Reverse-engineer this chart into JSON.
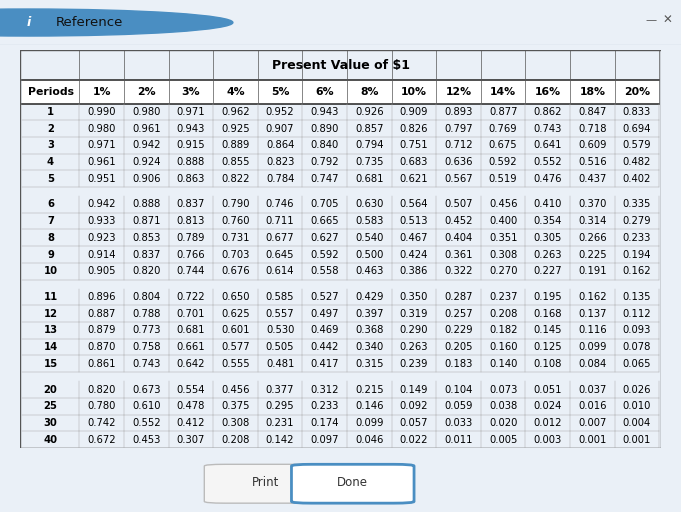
{
  "title": "Present Value of $1",
  "headers": [
    "Periods",
    "1%",
    "2%",
    "3%",
    "4%",
    "5%",
    "6%",
    "8%",
    "10%",
    "12%",
    "14%",
    "16%",
    "18%",
    "20%"
  ],
  "rows": [
    [
      "1",
      "0.990",
      "0.980",
      "0.971",
      "0.962",
      "0.952",
      "0.943",
      "0.926",
      "0.909",
      "0.893",
      "0.877",
      "0.862",
      "0.847",
      "0.833"
    ],
    [
      "2",
      "0.980",
      "0.961",
      "0.943",
      "0.925",
      "0.907",
      "0.890",
      "0.857",
      "0.826",
      "0.797",
      "0.769",
      "0.743",
      "0.718",
      "0.694"
    ],
    [
      "3",
      "0.971",
      "0.942",
      "0.915",
      "0.889",
      "0.864",
      "0.840",
      "0.794",
      "0.751",
      "0.712",
      "0.675",
      "0.641",
      "0.609",
      "0.579"
    ],
    [
      "4",
      "0.961",
      "0.924",
      "0.888",
      "0.855",
      "0.823",
      "0.792",
      "0.735",
      "0.683",
      "0.636",
      "0.592",
      "0.552",
      "0.516",
      "0.482"
    ],
    [
      "5",
      "0.951",
      "0.906",
      "0.863",
      "0.822",
      "0.784",
      "0.747",
      "0.681",
      "0.621",
      "0.567",
      "0.519",
      "0.476",
      "0.437",
      "0.402"
    ],
    [
      "6",
      "0.942",
      "0.888",
      "0.837",
      "0.790",
      "0.746",
      "0.705",
      "0.630",
      "0.564",
      "0.507",
      "0.456",
      "0.410",
      "0.370",
      "0.335"
    ],
    [
      "7",
      "0.933",
      "0.871",
      "0.813",
      "0.760",
      "0.711",
      "0.665",
      "0.583",
      "0.513",
      "0.452",
      "0.400",
      "0.354",
      "0.314",
      "0.279"
    ],
    [
      "8",
      "0.923",
      "0.853",
      "0.789",
      "0.731",
      "0.677",
      "0.627",
      "0.540",
      "0.467",
      "0.404",
      "0.351",
      "0.305",
      "0.266",
      "0.233"
    ],
    [
      "9",
      "0.914",
      "0.837",
      "0.766",
      "0.703",
      "0.645",
      "0.592",
      "0.500",
      "0.424",
      "0.361",
      "0.308",
      "0.263",
      "0.225",
      "0.194"
    ],
    [
      "10",
      "0.905",
      "0.820",
      "0.744",
      "0.676",
      "0.614",
      "0.558",
      "0.463",
      "0.386",
      "0.322",
      "0.270",
      "0.227",
      "0.191",
      "0.162"
    ],
    [
      "11",
      "0.896",
      "0.804",
      "0.722",
      "0.650",
      "0.585",
      "0.527",
      "0.429",
      "0.350",
      "0.287",
      "0.237",
      "0.195",
      "0.162",
      "0.135"
    ],
    [
      "12",
      "0.887",
      "0.788",
      "0.701",
      "0.625",
      "0.557",
      "0.497",
      "0.397",
      "0.319",
      "0.257",
      "0.208",
      "0.168",
      "0.137",
      "0.112"
    ],
    [
      "13",
      "0.879",
      "0.773",
      "0.681",
      "0.601",
      "0.530",
      "0.469",
      "0.368",
      "0.290",
      "0.229",
      "0.182",
      "0.145",
      "0.116",
      "0.093"
    ],
    [
      "14",
      "0.870",
      "0.758",
      "0.661",
      "0.577",
      "0.505",
      "0.442",
      "0.340",
      "0.263",
      "0.205",
      "0.160",
      "0.125",
      "0.099",
      "0.078"
    ],
    [
      "15",
      "0.861",
      "0.743",
      "0.642",
      "0.555",
      "0.481",
      "0.417",
      "0.315",
      "0.239",
      "0.183",
      "0.140",
      "0.108",
      "0.084",
      "0.065"
    ],
    [
      "20",
      "0.820",
      "0.673",
      "0.554",
      "0.456",
      "0.377",
      "0.312",
      "0.215",
      "0.149",
      "0.104",
      "0.073",
      "0.051",
      "0.037",
      "0.026"
    ],
    [
      "25",
      "0.780",
      "0.610",
      "0.478",
      "0.375",
      "0.295",
      "0.233",
      "0.146",
      "0.092",
      "0.059",
      "0.038",
      "0.024",
      "0.016",
      "0.010"
    ],
    [
      "30",
      "0.742",
      "0.552",
      "0.412",
      "0.308",
      "0.231",
      "0.174",
      "0.099",
      "0.057",
      "0.033",
      "0.020",
      "0.012",
      "0.007",
      "0.004"
    ],
    [
      "40",
      "0.672",
      "0.453",
      "0.307",
      "0.208",
      "0.142",
      "0.097",
      "0.046",
      "0.022",
      "0.011",
      "0.005",
      "0.003",
      "0.001",
      "0.001"
    ]
  ],
  "window_bg": "#eaf0f7",
  "titlebar_bg": "#eaf0f7",
  "table_bg": "#ffffff",
  "border_color": "#b0b8c8",
  "line_color_heavy": "#222222",
  "line_color_light": "#888888",
  "cell_text_color": "#000000",
  "font_size": 7.2,
  "header_font_size": 7.8,
  "title_font_size": 9.0,
  "info_icon_color": "#4a8ec2",
  "btn_border_print": "#bbbbbb",
  "btn_border_done": "#4a8ec2"
}
